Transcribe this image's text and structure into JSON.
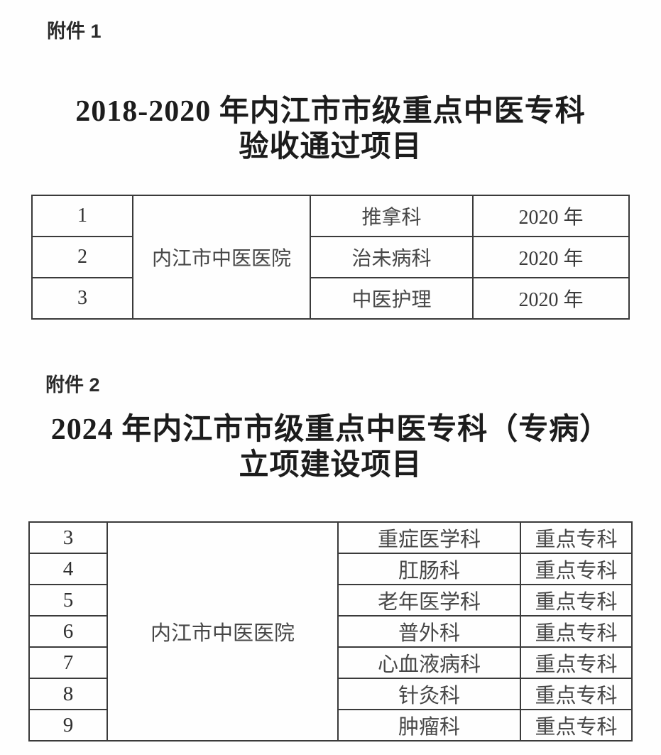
{
  "page": {
    "background": "#fefefe",
    "border_color": "#3a3a3a",
    "title_color": "#1c1c1c",
    "body_text_color": "#474747"
  },
  "attachment1": {
    "label": "附件 1",
    "title_line1": "2018-2020 年内江市市级重点中医专科",
    "title_line2": "验收通过项目",
    "table": {
      "hospital": "内江市中医医院",
      "rows": [
        {
          "num": "1",
          "department": "推拿科",
          "year": "2020 年"
        },
        {
          "num": "2",
          "department": "治未病科",
          "year": "2020 年"
        },
        {
          "num": "3",
          "department": "中医护理",
          "year": "2020 年"
        }
      ]
    }
  },
  "attachment2": {
    "label": "附件 2",
    "title_line1": "2024 年内江市市级重点中医专科（专病）",
    "title_line2": "立项建设项目",
    "table": {
      "hospital": "内江市中医医院",
      "rows": [
        {
          "num": "3",
          "department": "重症医学科",
          "type": "重点专科"
        },
        {
          "num": "4",
          "department": "肛肠科",
          "type": "重点专科"
        },
        {
          "num": "5",
          "department": "老年医学科",
          "type": "重点专科"
        },
        {
          "num": "6",
          "department": "普外科",
          "type": "重点专科"
        },
        {
          "num": "7",
          "department": "心血液病科",
          "type": "重点专科"
        },
        {
          "num": "8",
          "department": "针灸科",
          "type": "重点专科"
        },
        {
          "num": "9",
          "department": "肿瘤科",
          "type": "重点专科"
        }
      ]
    }
  }
}
